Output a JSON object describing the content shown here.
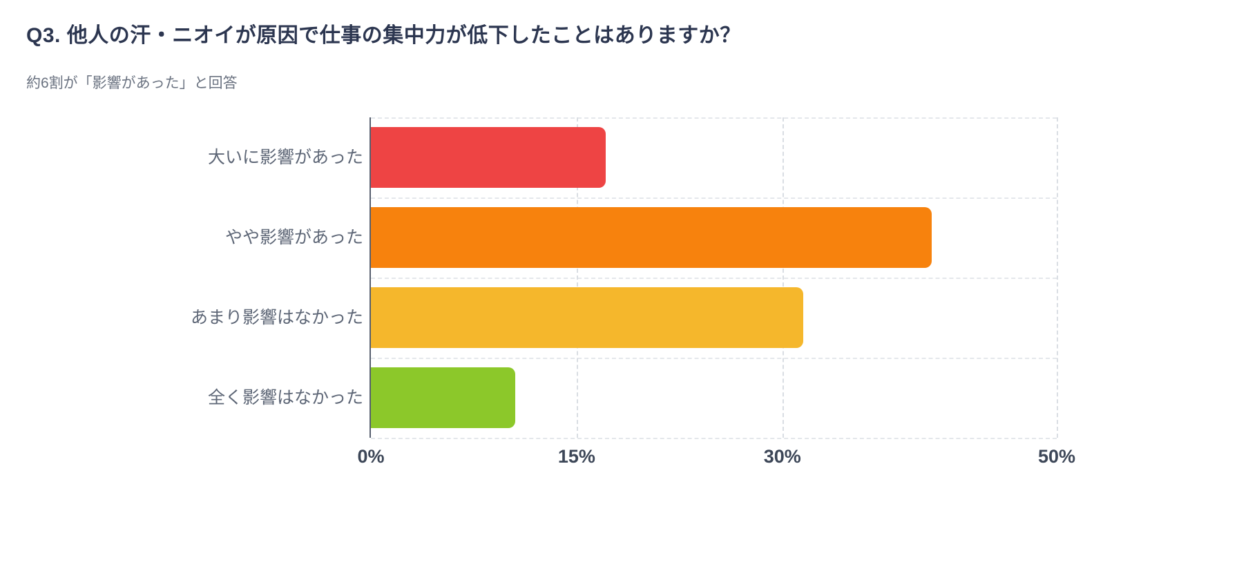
{
  "header": {
    "title": "Q3. 他人の汗・ニオイが原因で仕事の集中力が低下したことはありますか？",
    "subtitle": "約6割が「影響があった」と回答"
  },
  "chart_data": {
    "type": "bar",
    "orientation": "horizontal",
    "title": "Q3. 他人の汗・ニオイが原因で仕事の集中力が低下したことはありますか？",
    "subtitle": "約6割が「影響があった」と回答",
    "categories": [
      "大いに影響があった",
      "やや影響があった",
      "あまり影響はなかった",
      "全く影響はなかった"
    ],
    "values": [
      17.1,
      40.9,
      31.5,
      10.5
    ],
    "unit": "%",
    "colors": [
      "#ee4444",
      "#f7820d",
      "#f5b72c",
      "#8cc82a"
    ],
    "xlim": [
      0,
      50
    ],
    "x_ticks": [
      {
        "value": 0,
        "label": "0%"
      },
      {
        "value": 15,
        "label": "15%"
      },
      {
        "value": 30,
        "label": "30%"
      },
      {
        "value": 50,
        "label": "50%"
      }
    ],
    "grid": "dashed",
    "legend": false,
    "xlabel": "",
    "ylabel": ""
  }
}
